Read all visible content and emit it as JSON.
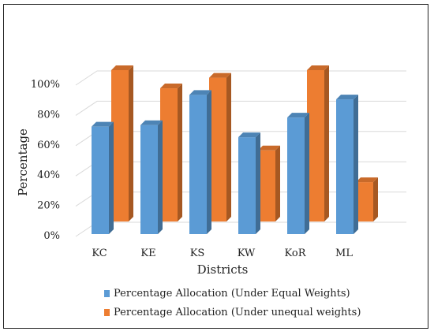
{
  "chart_data": {
    "type": "bar",
    "categories": [
      "KC",
      "KE",
      "KS",
      "KW",
      "KoR",
      "ML"
    ],
    "series": [
      {
        "name": "Percentage Allocation (Under Equal Weights)",
        "color": "#5b9bd5",
        "values": [
          71,
          72,
          92,
          64,
          77,
          89
        ]
      },
      {
        "name": "Percentage Allocation (Under unequal weights)",
        "color": "#ed7d31",
        "values": [
          100,
          88,
          95,
          47,
          100,
          26
        ]
      }
    ],
    "xlabel": "Districts",
    "ylabel": "Percentage",
    "ylim": [
      0,
      100
    ],
    "yticks": [
      "0%",
      "20%",
      "40%",
      "60%",
      "80%",
      "100%"
    ],
    "grid": true,
    "legend_position": "bottom",
    "style": "3d-clustered-column"
  }
}
